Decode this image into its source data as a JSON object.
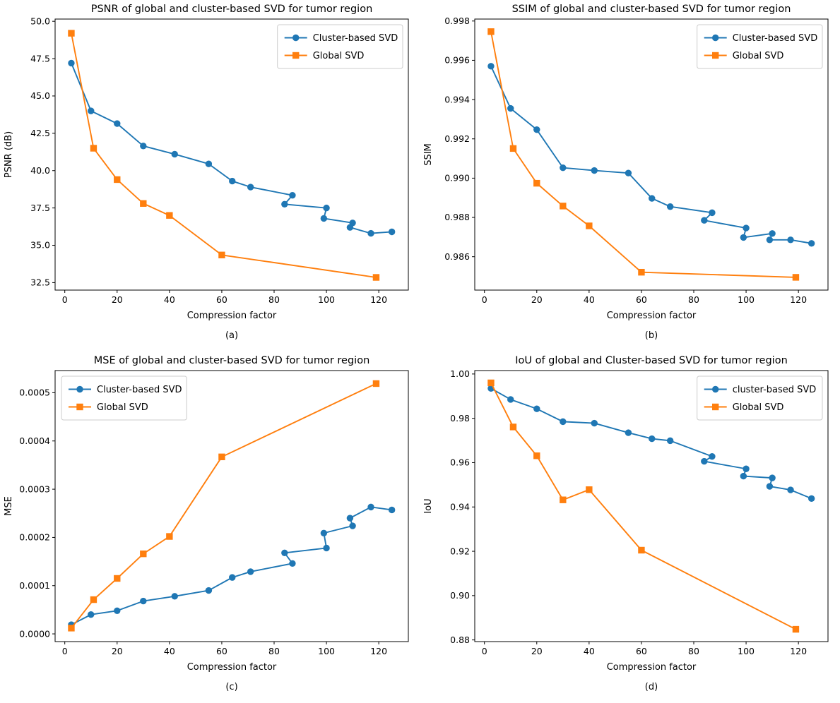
{
  "figure": {
    "background": "#ffffff",
    "x_axis_label": "Compression factor",
    "x_tick_labels": [
      "0",
      "20",
      "40",
      "60",
      "80",
      "100",
      "120"
    ],
    "x_tick_values": [
      0,
      20,
      40,
      60,
      80,
      100,
      120
    ],
    "xlim": [
      -3.7,
      131.3
    ]
  },
  "colors": {
    "cluster_blue": "#1f77b4",
    "global_orange": "#ff7f0e",
    "legend_border": "#cccccc",
    "axis": "#000000"
  },
  "chart_data": [
    {
      "type": "line",
      "id": "psnr",
      "caption": "(a)",
      "title": "PSNR of global and cluster-based SVD for tumor region",
      "xlabel": "Compression factor",
      "ylabel": "PSNR (dB)",
      "legend_loc": "upper-right",
      "legend": [
        "Cluster-based SVD",
        "Global SVD"
      ],
      "ylim": [
        32.0,
        50.15
      ],
      "y_tick_values": [
        32.5,
        35.0,
        37.5,
        40.0,
        42.5,
        45.0,
        47.5,
        50.0
      ],
      "y_tick_labels": [
        "32.5",
        "35.0",
        "37.5",
        "40.0",
        "42.5",
        "45.0",
        "47.5",
        "50.0"
      ],
      "series": [
        {
          "name": "Cluster-based SVD",
          "marker": "circle",
          "color": "#1f77b4",
          "x": [
            2.5,
            10,
            20,
            30,
            42,
            55,
            64,
            71,
            87,
            84,
            100,
            99,
            110,
            109,
            117,
            125
          ],
          "y": [
            47.2,
            44.0,
            43.15,
            41.65,
            41.1,
            40.45,
            39.3,
            38.9,
            38.35,
            37.75,
            37.5,
            36.8,
            36.5,
            36.2,
            35.8,
            35.9
          ]
        },
        {
          "name": "Global SVD",
          "marker": "square",
          "color": "#ff7f0e",
          "x": [
            2.5,
            11,
            20,
            30,
            40,
            60,
            119
          ],
          "y": [
            49.2,
            41.5,
            39.4,
            37.8,
            37.0,
            34.35,
            32.85
          ]
        }
      ]
    },
    {
      "type": "line",
      "id": "ssim",
      "caption": "(b)",
      "title": "SSIM of global and cluster-based SVD for tumor region",
      "xlabel": "Compression factor",
      "ylabel": "SSIM",
      "legend_loc": "upper-right",
      "legend": [
        "Cluster-based SVD",
        "Global SVD"
      ],
      "ylim": [
        0.9843,
        0.9981
      ],
      "y_tick_values": [
        0.986,
        0.988,
        0.99,
        0.992,
        0.994,
        0.996,
        0.998
      ],
      "y_tick_labels": [
        "0.986",
        "0.988",
        "0.990",
        "0.992",
        "0.994",
        "0.996",
        "0.998"
      ],
      "series": [
        {
          "name": "Cluster-based SVD",
          "marker": "circle",
          "color": "#1f77b4",
          "x": [
            2.5,
            10,
            20,
            30,
            42,
            55,
            64,
            71,
            87,
            84,
            100,
            99,
            110,
            109,
            117,
            125
          ],
          "y": [
            0.9957,
            0.99355,
            0.99247,
            0.99053,
            0.99039,
            0.99026,
            0.98897,
            0.98855,
            0.98824,
            0.98785,
            0.98746,
            0.98698,
            0.98718,
            0.98686,
            0.98686,
            0.98668
          ]
        },
        {
          "name": "Global SVD",
          "marker": "square",
          "color": "#ff7f0e",
          "x": [
            2.5,
            11,
            20,
            30,
            40,
            60,
            119
          ],
          "y": [
            0.99746,
            0.99151,
            0.98974,
            0.98858,
            0.98757,
            0.98521,
            0.98495
          ]
        }
      ]
    },
    {
      "type": "line",
      "id": "mse",
      "caption": "(c)",
      "title": "MSE of global and cluster-based SVD for tumor region",
      "xlabel": "Compression factor",
      "ylabel": "MSE",
      "legend_loc": "upper-left",
      "legend": [
        "Cluster-based SVD",
        "Global SVD"
      ],
      "ylim": [
        -1.6e-05,
        0.000546
      ],
      "y_tick_values": [
        0.0,
        0.0001,
        0.0002,
        0.0003,
        0.0004,
        0.0005
      ],
      "y_tick_labels": [
        "0.0000",
        "0.0001",
        "0.0002",
        "0.0003",
        "0.0004",
        "0.0005"
      ],
      "series": [
        {
          "name": "Cluster-based SVD",
          "marker": "circle",
          "color": "#1f77b4",
          "x": [
            2.5,
            10,
            20,
            30,
            42,
            55,
            64,
            71,
            87,
            84,
            100,
            99,
            110,
            109,
            117,
            125
          ],
          "y": [
            1.9e-05,
            4e-05,
            4.8e-05,
            6.8e-05,
            7.8e-05,
            9e-05,
            0.000117,
            0.000129,
            0.000146,
            0.000168,
            0.000178,
            0.000209,
            0.000224,
            0.00024,
            0.000263,
            0.000257
          ]
        },
        {
          "name": "Global SVD",
          "marker": "square",
          "color": "#ff7f0e",
          "x": [
            2.5,
            11,
            20,
            30,
            40,
            60,
            119
          ],
          "y": [
            1.2e-05,
            7.1e-05,
            0.000115,
            0.000166,
            0.000202,
            0.000367,
            0.000519
          ]
        }
      ]
    },
    {
      "type": "line",
      "id": "iou",
      "caption": "(d)",
      "title": "IoU of global and Cluster-based SVD for tumor region",
      "xlabel": "Compression factor",
      "ylabel": "IoU",
      "legend_loc": "upper-right",
      "legend": [
        "cluster-based SVD",
        "Global SVD"
      ],
      "ylim": [
        0.87925,
        1.00155
      ],
      "y_tick_values": [
        0.88,
        0.9,
        0.92,
        0.94,
        0.96,
        0.98,
        1.0
      ],
      "y_tick_labels": [
        "0.88",
        "0.90",
        "0.92",
        "0.94",
        "0.96",
        "0.98",
        "1.00"
      ],
      "series": [
        {
          "name": "cluster-based SVD",
          "marker": "circle",
          "color": "#1f77b4",
          "x": [
            2.5,
            10,
            20,
            30,
            42,
            55,
            64,
            71,
            87,
            84,
            100,
            99,
            110,
            109,
            117,
            125
          ],
          "y": [
            0.9935,
            0.9885,
            0.9843,
            0.9785,
            0.9778,
            0.9735,
            0.9708,
            0.9699,
            0.9628,
            0.9606,
            0.9572,
            0.9539,
            0.9531,
            0.9493,
            0.9477,
            0.9438
          ]
        },
        {
          "name": "Global SVD",
          "marker": "square",
          "color": "#ff7f0e",
          "x": [
            2.5,
            11,
            20,
            30,
            40,
            60,
            119
          ],
          "y": [
            0.996,
            0.9761,
            0.9631,
            0.9432,
            0.9478,
            0.9205,
            0.8848
          ]
        }
      ]
    }
  ]
}
